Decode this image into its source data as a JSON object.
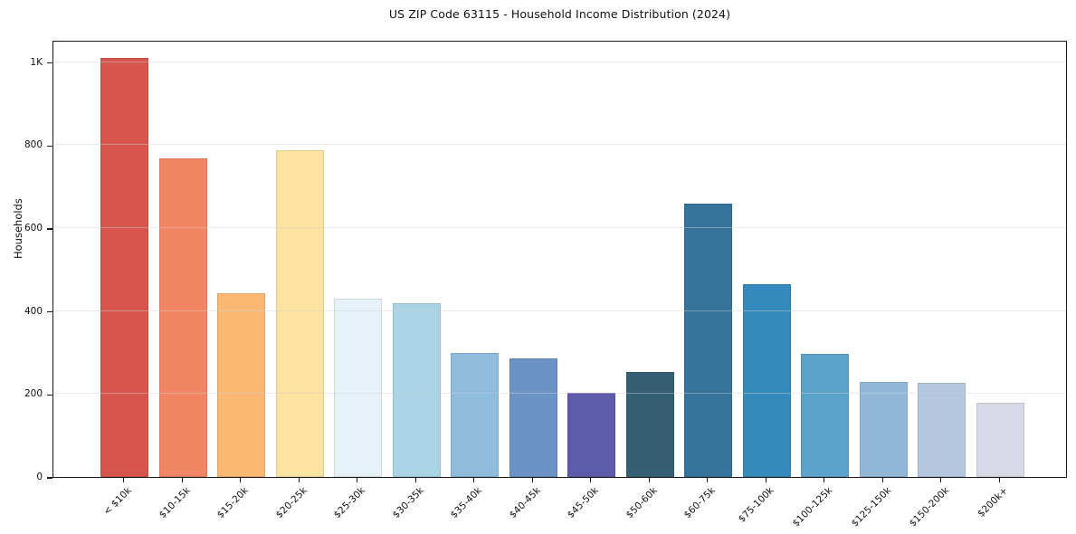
{
  "title": "US ZIP Code 63115 - Household Income Distribution (2024)",
  "chart_data": {
    "type": "bar",
    "title": "US ZIP Code 63115 - Household Income Distribution (2024)",
    "xlabel": "",
    "ylabel": "Households",
    "categories": [
      "< $10k",
      "$10-15k",
      "$15-20k",
      "$20-25k",
      "$25-30k",
      "$30-35k",
      "$35-40k",
      "$40-45k",
      "$45-50k",
      "$50-60k",
      "$60-75k",
      "$75-100k",
      "$100-125k",
      "$125-150k",
      "$150-200k",
      "$200k+"
    ],
    "values": [
      1010,
      768,
      442,
      787,
      429,
      420,
      300,
      285,
      202,
      253,
      658,
      464,
      296,
      229,
      227,
      180
    ],
    "bar_colors": [
      "#d6554d",
      "#f28563",
      "#fab873",
      "#fde3a0",
      "#e6f2f7",
      "#abd3e6",
      "#8fbcdb",
      "#6b93c5",
      "#5d5caa",
      "#355f72",
      "#36749b",
      "#3489bd",
      "#5ba3cb",
      "#92b8d8",
      "#b5c6df",
      "#d8d9e7"
    ],
    "yticks": [
      {
        "value": 0,
        "label": "0"
      },
      {
        "value": 200,
        "label": "200"
      },
      {
        "value": 400,
        "label": "400"
      },
      {
        "value": 600,
        "label": "600"
      },
      {
        "value": 800,
        "label": "800"
      },
      {
        "value": 1000,
        "label": "1K"
      }
    ],
    "ylim": [
      0,
      1054
    ],
    "grid": "horizontal gridlines at y ticks, drawn on top of bars",
    "legend": "none"
  },
  "colors": {
    "background": "#ffffff",
    "axis_frame": "#1a1a1a",
    "gridline": "#e8e8e8",
    "text": "#111111"
  }
}
